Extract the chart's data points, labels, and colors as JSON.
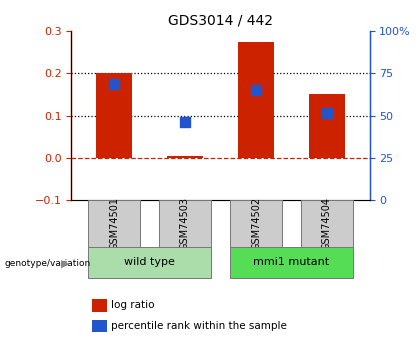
{
  "title": "GDS3014 / 442",
  "samples": [
    "GSM74501",
    "GSM74503",
    "GSM74502",
    "GSM74504"
  ],
  "log_ratio": [
    0.2,
    0.005,
    0.275,
    0.15
  ],
  "percentile_rank": [
    0.175,
    0.085,
    0.16,
    0.105
  ],
  "groups": [
    {
      "label": "wild type",
      "samples": [
        0,
        1
      ],
      "color": "#aaddaa"
    },
    {
      "label": "mmi1 mutant",
      "samples": [
        2,
        3
      ],
      "color": "#55dd55"
    }
  ],
  "left_ylim": [
    -0.1,
    0.3
  ],
  "right_ylim": [
    0,
    100
  ],
  "left_yticks": [
    -0.1,
    0,
    0.1,
    0.2,
    0.3
  ],
  "right_yticks": [
    0,
    25,
    50,
    75,
    100
  ],
  "right_yticklabels": [
    "0",
    "25",
    "50",
    "75",
    "100%"
  ],
  "dotted_lines": [
    0.1,
    0.2
  ],
  "bar_color": "#cc2200",
  "square_color": "#2255cc",
  "bar_width": 0.5,
  "square_size": 55,
  "sample_box_color": "#cccccc",
  "legend_items": [
    {
      "color": "#cc2200",
      "label": "log ratio"
    },
    {
      "color": "#2255cc",
      "label": "percentile rank within the sample"
    }
  ]
}
